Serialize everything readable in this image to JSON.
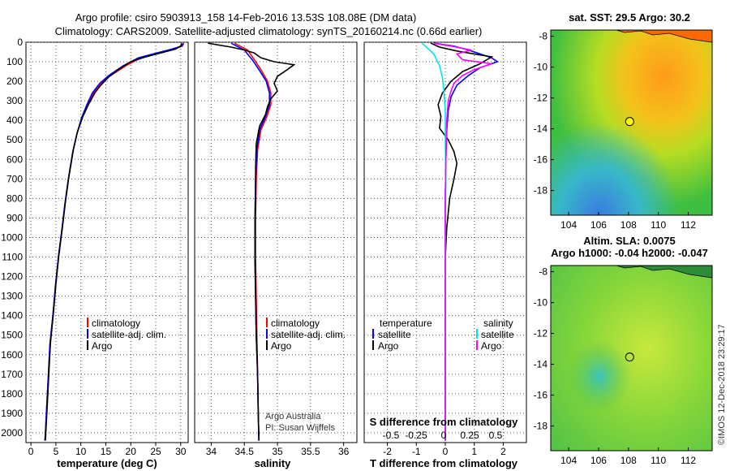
{
  "header": {
    "title_line1": "Argo profile: csiro 5903913_158 14-Feb-2016 13.53S 108.08E (DM data)",
    "title_line2": "Climatology: CARS2009. Satellite-adjusted climatology: synTS_20160214.nc (0.66d earlier)"
  },
  "colors": {
    "climatology": "#ff0000",
    "satellite": "#0000ff",
    "argo": "#000000",
    "sat_s": "#00e5e5",
    "argo_s_diff": "#ff00ff"
  },
  "legend_temp": {
    "climatology": "climatology",
    "satellite": "satellite-adj. clim.",
    "argo": "Argo"
  },
  "legend_sal": {
    "climatology": "climatology",
    "satellite": "satellite-adj. clim.",
    "argo": "Argo"
  },
  "legend_diff": {
    "temp_header": "temperature",
    "sal_header": "salinity",
    "satellite": "satellite",
    "argo": "Argo"
  },
  "credits": {
    "line1": "Argo Australia",
    "line2": "PI: Susan Wijffels"
  },
  "maps": {
    "sst_title": "sat. SST: 29.5 Argo: 30.2",
    "sla_title1": "Altim. SLA: 0.0075",
    "sla_title2": "Argo h1000: -0.04 h2000: -0.047",
    "lon_ticks": [
      "104",
      "106",
      "108",
      "110",
      "112"
    ],
    "lat_ticks": [
      "-8",
      "-10",
      "-12",
      "-14",
      "-16",
      "-18"
    ],
    "float_position": {
      "lon": 108.08,
      "lat": -13.53
    }
  },
  "watermark": "©IMOS 12-Dec-2018 23:29:17",
  "chart_data": [
    {
      "type": "line",
      "panel": "temperature",
      "xlabel": "temperature (deg C)",
      "ylabel": "",
      "xlim": [
        -1,
        31.5
      ],
      "ylim": [
        2050,
        0
      ],
      "xticks": [
        0,
        5,
        10,
        15,
        20,
        25,
        30
      ],
      "yticks": [
        0,
        100,
        200,
        300,
        400,
        500,
        600,
        700,
        800,
        900,
        1000,
        1100,
        1200,
        1300,
        1400,
        1500,
        1600,
        1700,
        1800,
        1900,
        2000
      ],
      "grid": true,
      "legend_position": "lower-center",
      "series": [
        {
          "name": "climatology",
          "color": "#ff0000",
          "points": [
            [
              30.3,
              5
            ],
            [
              30,
              20
            ],
            [
              28,
              40
            ],
            [
              25,
              60
            ],
            [
              22,
              80
            ],
            [
              19,
              120
            ],
            [
              16,
              170
            ],
            [
              14,
              210
            ],
            [
              12.5,
              260
            ],
            [
              11.3,
              320
            ],
            [
              10.2,
              390
            ],
            [
              9.2,
              470
            ],
            [
              8.4,
              560
            ],
            [
              7.5,
              700
            ],
            [
              6.8,
              830
            ],
            [
              6.2,
              960
            ],
            [
              5.5,
              1100
            ],
            [
              4.9,
              1250
            ],
            [
              4.4,
              1400
            ],
            [
              3.8,
              1550
            ],
            [
              3.5,
              1700
            ],
            [
              3.2,
              1850
            ],
            [
              2.9,
              2000
            ],
            [
              2.8,
              2040
            ]
          ]
        },
        {
          "name": "satellite-adj. clim.",
          "color": "#0000ff",
          "points": [
            [
              30.6,
              5
            ],
            [
              30.3,
              20
            ],
            [
              27.5,
              40
            ],
            [
              24.5,
              60
            ],
            [
              21.5,
              80
            ],
            [
              18.5,
              120
            ],
            [
              15.6,
              170
            ],
            [
              13.8,
              210
            ],
            [
              12.3,
              260
            ],
            [
              11.2,
              320
            ],
            [
              10.1,
              390
            ],
            [
              9.2,
              470
            ],
            [
              8.4,
              560
            ],
            [
              7.5,
              700
            ],
            [
              6.8,
              830
            ],
            [
              6.2,
              960
            ],
            [
              5.5,
              1100
            ],
            [
              4.9,
              1250
            ],
            [
              4.4,
              1400
            ],
            [
              3.8,
              1550
            ],
            [
              3.5,
              1700
            ],
            [
              3.2,
              1850
            ],
            [
              2.9,
              2000
            ],
            [
              2.8,
              2040
            ]
          ]
        },
        {
          "name": "Argo",
          "color": "#000000",
          "points": [
            [
              30.2,
              5
            ],
            [
              30,
              20
            ],
            [
              29,
              35
            ],
            [
              26,
              55
            ],
            [
              23,
              75
            ],
            [
              20,
              100
            ],
            [
              17.5,
              140
            ],
            [
              15.5,
              180
            ],
            [
              14,
              220
            ],
            [
              12.8,
              260
            ],
            [
              11.5,
              320
            ],
            [
              10.4,
              380
            ],
            [
              9.3,
              460
            ],
            [
              8.5,
              550
            ],
            [
              7.6,
              690
            ],
            [
              6.9,
              820
            ],
            [
              6.3,
              950
            ],
            [
              5.6,
              1090
            ],
            [
              5,
              1240
            ],
            [
              4.5,
              1390
            ],
            [
              3.9,
              1540
            ],
            [
              3.6,
              1690
            ],
            [
              3.3,
              1840
            ],
            [
              3,
              1990
            ],
            [
              2.9,
              2040
            ]
          ]
        }
      ]
    },
    {
      "type": "line",
      "panel": "salinity",
      "xlabel": "salinity",
      "ylabel": "",
      "xlim": [
        33.75,
        36.2
      ],
      "ylim": [
        2050,
        0
      ],
      "xticks": [
        34,
        34.5,
        35,
        35.5,
        36
      ],
      "grid": true,
      "legend_position": "lower-center",
      "series": [
        {
          "name": "climatology",
          "color": "#ff0000",
          "points": [
            [
              34.35,
              5
            ],
            [
              34.55,
              40
            ],
            [
              34.65,
              90
            ],
            [
              34.75,
              140
            ],
            [
              34.85,
              200
            ],
            [
              34.9,
              260
            ],
            [
              34.9,
              320
            ],
            [
              34.84,
              380
            ],
            [
              34.75,
              450
            ],
            [
              34.7,
              550
            ],
            [
              34.68,
              700
            ],
            [
              34.67,
              900
            ],
            [
              34.67,
              1100
            ],
            [
              34.68,
              1300
            ],
            [
              34.69,
              1500
            ],
            [
              34.7,
              1700
            ],
            [
              34.71,
              1900
            ],
            [
              34.72,
              2040
            ]
          ]
        },
        {
          "name": "satellite-adj. clim.",
          "color": "#0000ff",
          "points": [
            [
              34.3,
              5
            ],
            [
              34.5,
              40
            ],
            [
              34.62,
              90
            ],
            [
              34.72,
              140
            ],
            [
              34.83,
              200
            ],
            [
              34.88,
              260
            ],
            [
              34.88,
              320
            ],
            [
              34.82,
              380
            ],
            [
              34.73,
              450
            ],
            [
              34.69,
              550
            ],
            [
              34.67,
              700
            ],
            [
              34.66,
              900
            ],
            [
              34.66,
              1100
            ],
            [
              34.67,
              1300
            ],
            [
              34.68,
              1500
            ],
            [
              34.7,
              1700
            ],
            [
              34.71,
              1900
            ],
            [
              34.72,
              2040
            ]
          ]
        },
        {
          "name": "Argo",
          "color": "#000000",
          "points": [
            [
              33.95,
              5
            ],
            [
              34.3,
              25
            ],
            [
              34.5,
              40
            ],
            [
              34.65,
              55
            ],
            [
              34.75,
              80
            ],
            [
              34.95,
              100
            ],
            [
              35.25,
              115
            ],
            [
              35.15,
              140
            ],
            [
              35,
              175
            ],
            [
              34.95,
              210
            ],
            [
              35,
              250
            ],
            [
              34.9,
              290
            ],
            [
              34.85,
              330
            ],
            [
              34.82,
              370
            ],
            [
              34.73,
              430
            ],
            [
              34.68,
              520
            ],
            [
              34.67,
              650
            ],
            [
              34.67,
              800
            ],
            [
              34.66,
              950
            ],
            [
              34.66,
              1100
            ],
            [
              34.67,
              1300
            ],
            [
              34.68,
              1500
            ],
            [
              34.7,
              1700
            ],
            [
              34.71,
              1900
            ],
            [
              34.72,
              2040
            ]
          ]
        }
      ]
    },
    {
      "type": "line",
      "panel": "difference",
      "xlabel": "T difference from climatology",
      "top_label": "S difference from climatology",
      "xlim": [
        -2.8,
        2.8
      ],
      "ylim": [
        2050,
        0
      ],
      "xticks": [
        -2,
        -1,
        0,
        1,
        2
      ],
      "sal_ticks": [
        "-0.5",
        "-0.25",
        "0",
        "0.25",
        "0.5"
      ],
      "grid": true,
      "legend_position": "lower-center",
      "series": [
        {
          "name": "temperature satellite",
          "color": "#0000ff",
          "points": [
            [
              -0.4,
              5
            ],
            [
              0.3,
              20
            ],
            [
              0.8,
              40
            ],
            [
              1.2,
              60
            ],
            [
              1.6,
              80
            ],
            [
              1.8,
              100
            ],
            [
              1.2,
              130
            ],
            [
              0.8,
              170
            ],
            [
              0.4,
              220
            ],
            [
              0.2,
              280
            ],
            [
              0.1,
              350
            ],
            [
              0.05,
              450
            ],
            [
              0.02,
              600
            ],
            [
              0,
              800
            ],
            [
              0,
              1000
            ],
            [
              0,
              1200
            ],
            [
              0,
              1500
            ],
            [
              0,
              2040
            ]
          ]
        },
        {
          "name": "temperature Argo",
          "color": "#000000",
          "points": [
            [
              -0.5,
              5
            ],
            [
              -0.2,
              25
            ],
            [
              0.4,
              45
            ],
            [
              1,
              60
            ],
            [
              1.6,
              75
            ],
            [
              1.2,
              110
            ],
            [
              0.6,
              150
            ],
            [
              0.2,
              200
            ],
            [
              -0.1,
              260
            ],
            [
              -0.25,
              320
            ],
            [
              -0.15,
              380
            ],
            [
              -0.2,
              440
            ],
            [
              0.1,
              500
            ],
            [
              0.3,
              560
            ],
            [
              0.4,
              620
            ],
            [
              0.3,
              700
            ],
            [
              0.15,
              800
            ],
            [
              0.05,
              950
            ],
            [
              0,
              1100
            ],
            [
              0,
              1400
            ],
            [
              0,
              1700
            ],
            [
              0,
              2040
            ]
          ]
        },
        {
          "name": "salinity satellite",
          "color": "#00e5e5",
          "points": [
            [
              -0.8,
              5
            ],
            [
              -0.4,
              60
            ],
            [
              -0.2,
              120
            ],
            [
              -0.1,
              180
            ],
            [
              -0.05,
              250
            ],
            [
              0,
              350
            ],
            [
              0,
              500
            ],
            [
              0.02,
              700
            ],
            [
              0,
              1000
            ],
            [
              0,
              1300
            ],
            [
              0,
              1600
            ],
            [
              0,
              2040
            ]
          ]
        },
        {
          "name": "salinity Argo",
          "color": "#ff00ff",
          "points": [
            [
              -0.4,
              5
            ],
            [
              0.2,
              20
            ],
            [
              0.9,
              40
            ],
            [
              0.4,
              60
            ],
            [
              0.6,
              90
            ],
            [
              1.6,
              110
            ],
            [
              1,
              140
            ],
            [
              0.6,
              170
            ],
            [
              0.3,
              210
            ],
            [
              0.2,
              250
            ],
            [
              0.1,
              300
            ],
            [
              0.05,
              400
            ],
            [
              0.02,
              600
            ],
            [
              0,
              800
            ],
            [
              0,
              1100
            ],
            [
              0,
              1500
            ],
            [
              0,
              2040
            ]
          ]
        }
      ]
    }
  ]
}
